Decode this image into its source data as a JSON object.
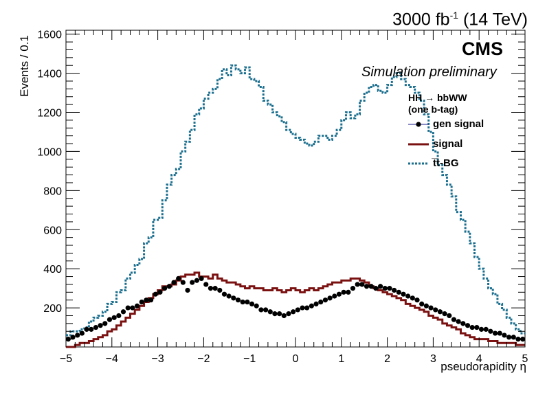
{
  "header": {
    "lumi_value": "3000 fb",
    "lumi_exp": "-1",
    "lumi_energy": " (14 TeV)",
    "cms_label": "CMS",
    "prelim_label": "Simulation preliminary"
  },
  "legend": {
    "title_line1": "HH → bbWW",
    "title_line2": "(one b-tag)",
    "entries": [
      "gen signal",
      "signal",
      "t̅t-BG"
    ]
  },
  "chart_data": {
    "type": "line",
    "xlabel": "pseudorapidity η",
    "ylabel": "Events / 0.1",
    "xlim": [
      -5,
      5
    ],
    "ylim": [
      0,
      1620
    ],
    "xticks": [
      -5,
      -4,
      -3,
      -2,
      -1,
      0,
      1,
      2,
      3,
      4,
      5
    ],
    "yticks": [
      200,
      400,
      600,
      800,
      1000,
      1200,
      1400,
      1600
    ],
    "bin_edges_start": -5,
    "bin_width": 0.1,
    "series": [
      {
        "name": "t̅t-BG",
        "style": "dotted-step",
        "color": "#1a6e8e",
        "values": [
          60,
          80,
          80,
          90,
          100,
          130,
          150,
          160,
          180,
          220,
          230,
          280,
          290,
          350,
          380,
          420,
          450,
          530,
          560,
          650,
          660,
          750,
          830,
          880,
          910,
          1000,
          1050,
          1110,
          1190,
          1220,
          1270,
          1300,
          1320,
          1370,
          1420,
          1390,
          1440,
          1420,
          1400,
          1430,
          1370,
          1360,
          1330,
          1260,
          1240,
          1200,
          1180,
          1150,
          1110,
          1090,
          1070,
          1060,
          1040,
          1030,
          1050,
          1080,
          1080,
          1060,
          1080,
          1110,
          1160,
          1200,
          1170,
          1190,
          1260,
          1300,
          1330,
          1340,
          1310,
          1300,
          1340,
          1380,
          1400,
          1370,
          1340,
          1330,
          1300,
          1260,
          1190,
          1100,
          1000,
          930,
          880,
          830,
          770,
          690,
          650,
          590,
          530,
          460,
          400,
          350,
          300,
          270,
          220,
          190,
          150,
          120,
          90,
          70
        ]
      },
      {
        "name": "signal",
        "style": "step",
        "color": "#7a1010",
        "values": [
          0,
          0,
          10,
          20,
          20,
          30,
          40,
          50,
          60,
          80,
          90,
          110,
          130,
          150,
          170,
          190,
          210,
          230,
          250,
          270,
          290,
          310,
          310,
          320,
          340,
          360,
          370,
          370,
          380,
          360,
          360,
          350,
          370,
          350,
          340,
          330,
          330,
          320,
          310,
          300,
          310,
          300,
          300,
          290,
          290,
          300,
          290,
          280,
          290,
          300,
          290,
          280,
          290,
          300,
          290,
          300,
          310,
          320,
          330,
          330,
          340,
          340,
          350,
          350,
          340,
          330,
          310,
          300,
          290,
          280,
          270,
          260,
          250,
          240,
          220,
          210,
          200,
          190,
          180,
          160,
          150,
          140,
          120,
          110,
          100,
          90,
          70,
          60,
          50,
          40,
          40,
          40,
          30,
          30,
          20,
          20,
          20,
          20,
          10,
          10
        ]
      },
      {
        "name": "gen signal",
        "style": "points",
        "color": "#000000",
        "values": [
          40,
          50,
          60,
          70,
          90,
          90,
          100,
          110,
          120,
          140,
          150,
          160,
          180,
          200,
          200,
          210,
          230,
          240,
          240,
          270,
          280,
          300,
          310,
          330,
          350,
          330,
          290,
          330,
          340,
          350,
          320,
          300,
          300,
          290,
          270,
          260,
          250,
          240,
          230,
          230,
          220,
          210,
          190,
          190,
          180,
          170,
          170,
          160,
          170,
          180,
          190,
          200,
          200,
          210,
          220,
          230,
          240,
          250,
          260,
          270,
          280,
          280,
          300,
          320,
          320,
          310,
          310,
          300,
          310,
          300,
          300,
          290,
          280,
          270,
          260,
          250,
          240,
          220,
          210,
          200,
          190,
          180,
          170,
          160,
          140,
          130,
          120,
          110,
          100,
          100,
          90,
          90,
          80,
          70,
          70,
          60,
          50,
          50,
          40,
          40
        ]
      }
    ]
  }
}
